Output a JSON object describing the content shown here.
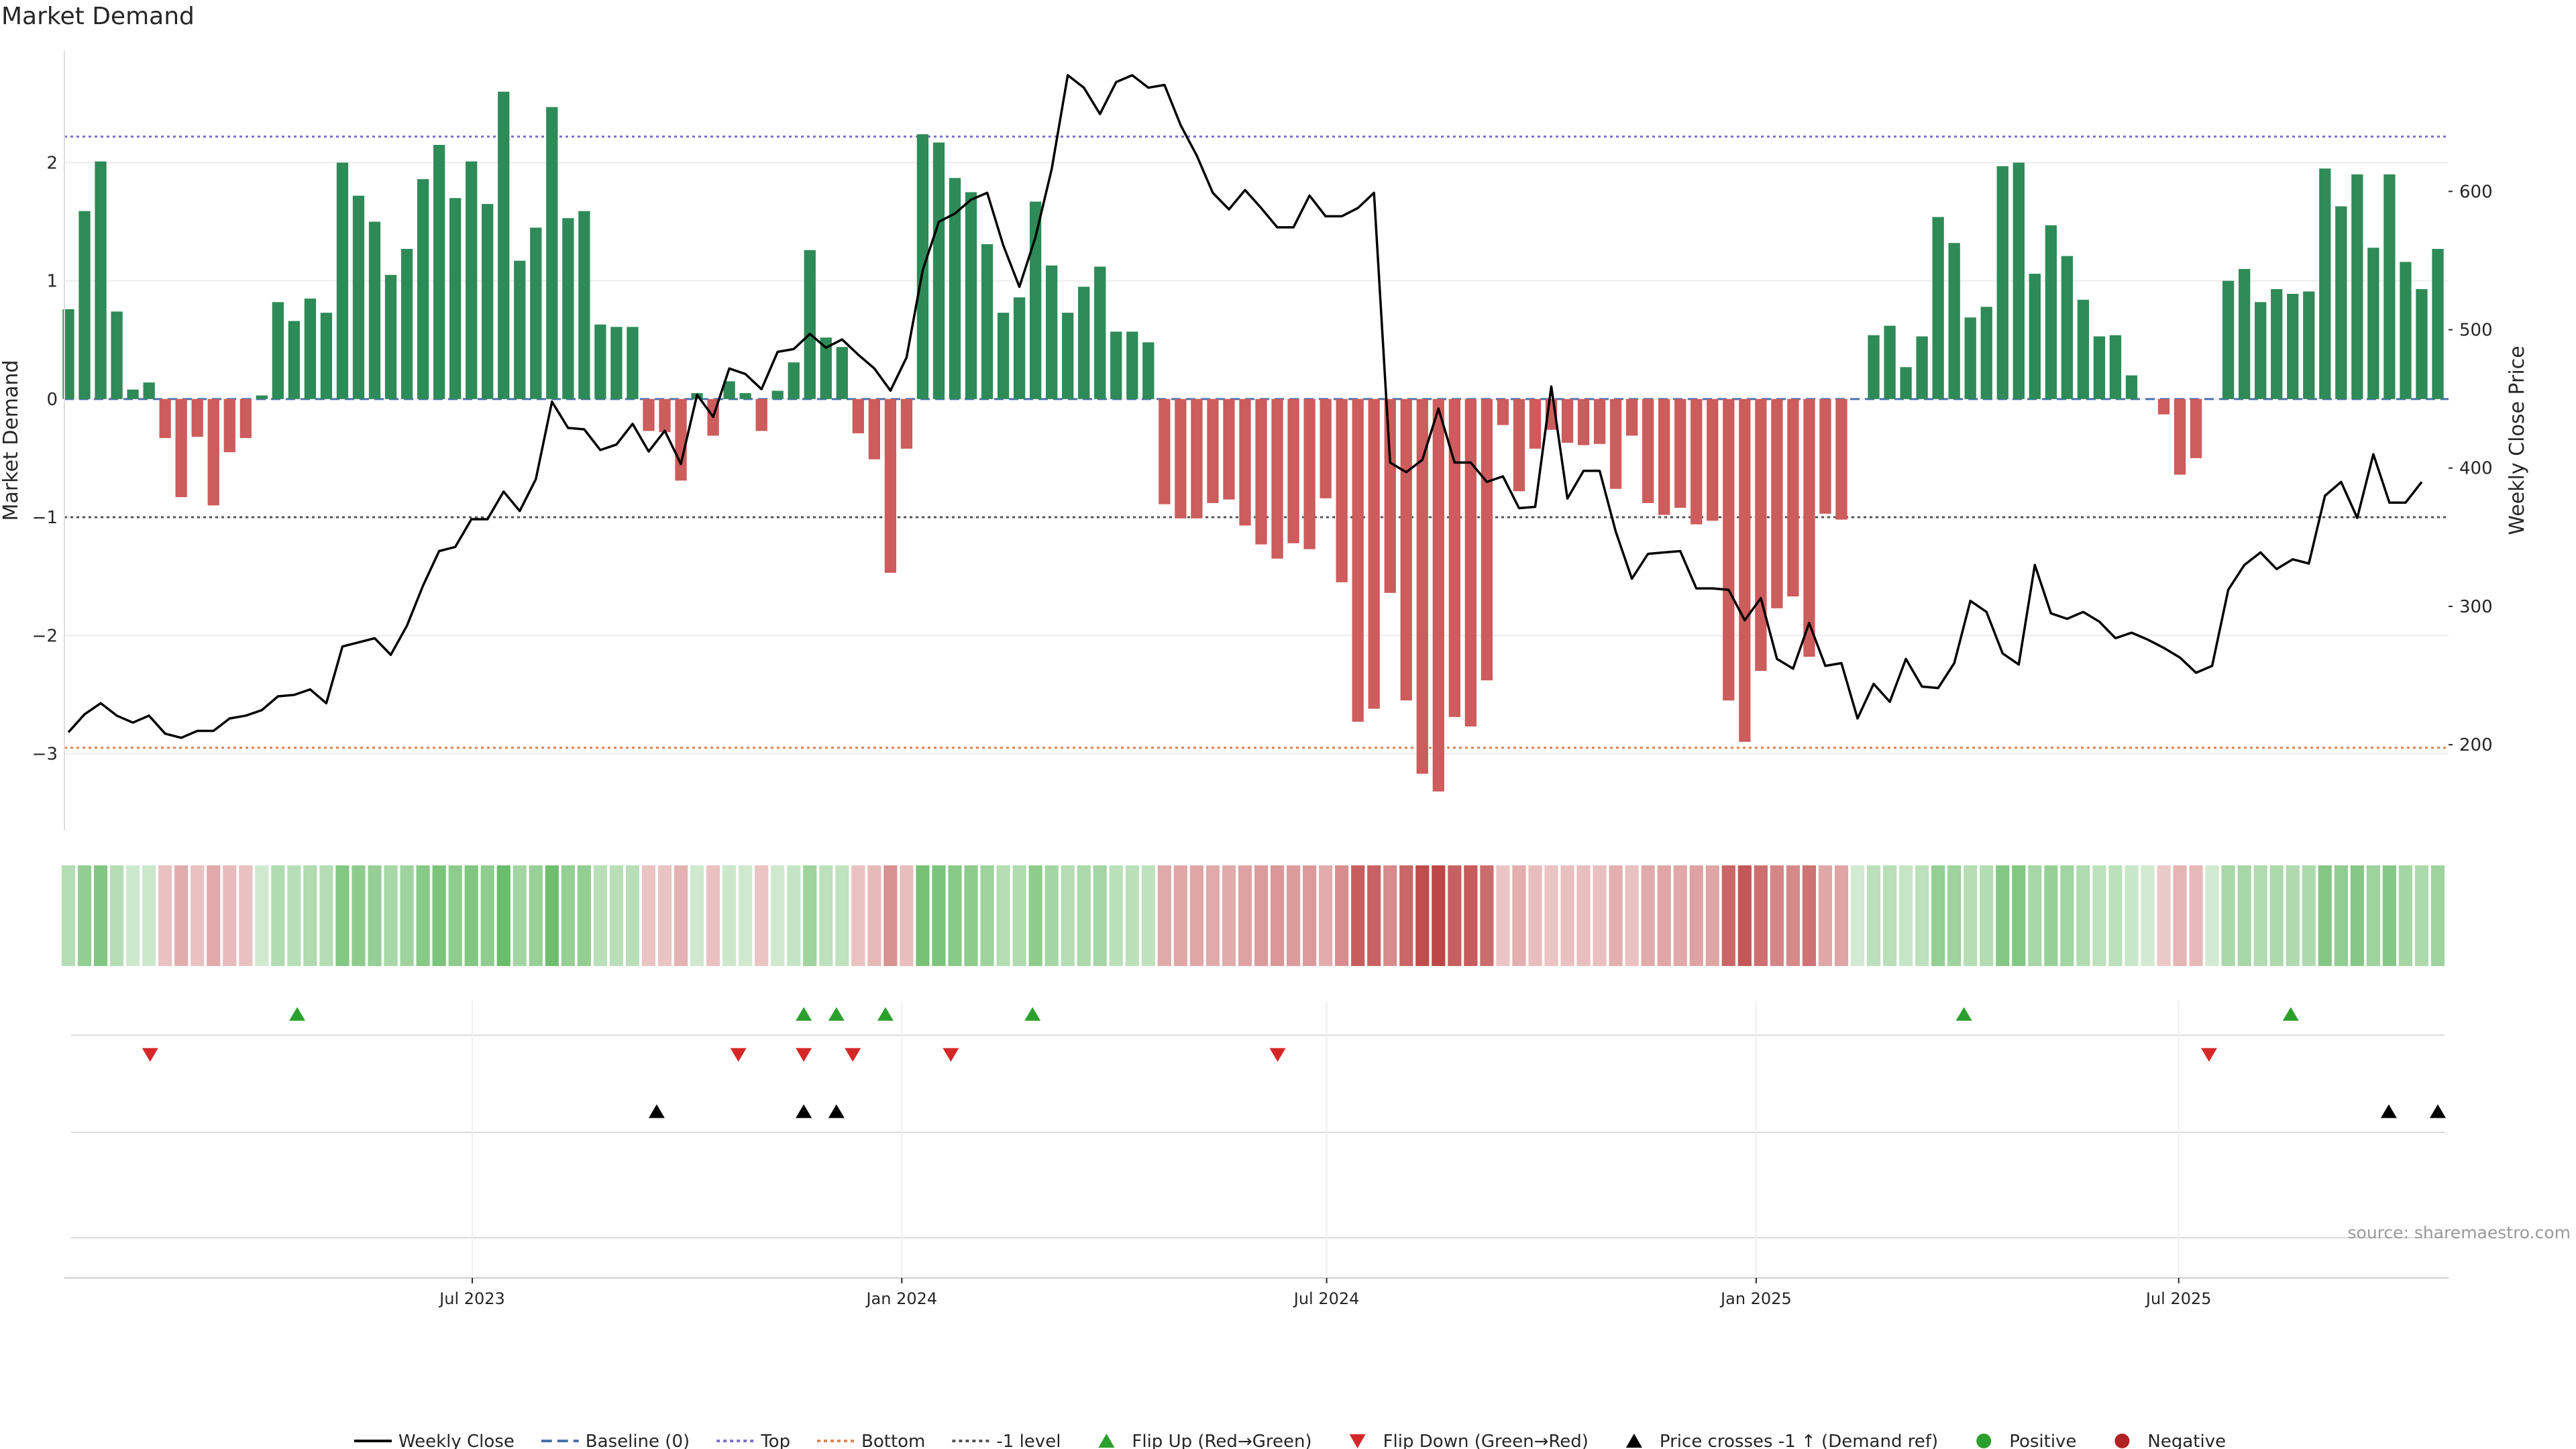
{
  "chart_data": {
    "type": "bar",
    "title": "Market Demand",
    "ylabel_left": "Market Demand",
    "ylabel_right": "Weekly Close Price",
    "source": "source: sharemaestro.com",
    "x_start": "2023-01-09",
    "x_end": "2025-10-20",
    "x_ticks": [
      {
        "date": "2023-07-01",
        "label": "Jul 2023"
      },
      {
        "date": "2024-01-01",
        "label": "Jan 2024"
      },
      {
        "date": "2024-07-01",
        "label": "Jul 2024"
      },
      {
        "date": "2025-01-01",
        "label": "Jan 2025"
      },
      {
        "date": "2025-07-01",
        "label": "Jul 2025"
      }
    ],
    "y_left": {
      "min": -3.65,
      "max": 2.95,
      "ticks": [
        2,
        1,
        0,
        -1,
        -2,
        -3
      ],
      "tick_labels": [
        "2",
        "1",
        "0",
        "−1",
        "−2",
        "−3"
      ]
    },
    "y_right": {
      "min": 138,
      "max": 702,
      "ticks": [
        600,
        500,
        400,
        300,
        200
      ],
      "tick_labels": [
        "600",
        "500",
        "400",
        "300",
        "200"
      ]
    },
    "levels": {
      "top": 2.22,
      "bottom": -2.95,
      "minus_one": -1,
      "baseline": 0
    },
    "demand": [
      0.76,
      1.59,
      2.01,
      0.74,
      0.08,
      0.14,
      -0.33,
      -0.83,
      -0.32,
      -0.9,
      -0.45,
      -0.33,
      0.03,
      0.82,
      0.66,
      0.85,
      0.73,
      2.0,
      1.72,
      1.5,
      1.05,
      1.27,
      1.86,
      2.15,
      1.7,
      2.01,
      1.65,
      2.6,
      1.17,
      1.45,
      2.47,
      1.53,
      1.59,
      0.63,
      0.61,
      0.61,
      -0.27,
      -0.28,
      -0.69,
      0.05,
      -0.31,
      0.15,
      0.05,
      -0.27,
      0.07,
      0.31,
      1.26,
      0.52,
      0.44,
      -0.29,
      -0.51,
      -1.47,
      -0.42,
      2.24,
      2.17,
      1.87,
      1.75,
      1.31,
      0.73,
      0.86,
      1.67,
      1.13,
      0.73,
      0.95,
      1.12,
      0.57,
      0.57,
      0.48,
      -0.89,
      -1.01,
      -1.01,
      -0.88,
      -0.85,
      -1.07,
      -1.23,
      -1.35,
      -1.22,
      -1.27,
      -0.84,
      -1.55,
      -2.73,
      -2.62,
      -1.64,
      -2.55,
      -3.17,
      -3.32,
      -2.69,
      -2.77,
      -2.38,
      -0.22,
      -0.78,
      -0.42,
      -0.26,
      -0.37,
      -0.39,
      -0.38,
      -0.76,
      -0.31,
      -0.88,
      -0.98,
      -0.92,
      -1.06,
      -1.03,
      -2.55,
      -2.9,
      -2.3,
      -1.77,
      -1.67,
      -2.18,
      -0.97,
      -1.02,
      0.0,
      0.54,
      0.62,
      0.27,
      0.53,
      1.54,
      1.32,
      0.69,
      0.78,
      1.97,
      2.0,
      1.06,
      1.47,
      1.21,
      0.84,
      0.53,
      0.54,
      0.2,
      0.0,
      -0.13,
      -0.64,
      -0.5,
      0.0,
      1.0,
      1.1,
      0.82,
      0.93,
      0.89,
      0.91,
      1.95,
      1.63,
      1.9,
      1.28,
      1.9,
      1.16,
      0.93,
      1.27
    ],
    "price": [
      209,
      222,
      230,
      221,
      216,
      221,
      208,
      205,
      210,
      210,
      219,
      221,
      225,
      235,
      236,
      240,
      230,
      271,
      274,
      277,
      265,
      286,
      315,
      340,
      343,
      363,
      363,
      383,
      369,
      392,
      448,
      429,
      428,
      413,
      417,
      432,
      412,
      427,
      403,
      453,
      437,
      472,
      468,
      457,
      484,
      486,
      497,
      487,
      493,
      482,
      472,
      456,
      480,
      543,
      578,
      584,
      594,
      599,
      561,
      531,
      567,
      616,
      684,
      675,
      656,
      679,
      684,
      675,
      677,
      648,
      626,
      599,
      587,
      601,
      588,
      574,
      574,
      597,
      582,
      582,
      588,
      599,
      404,
      397,
      406,
      443,
      404,
      404,
      390,
      394,
      371,
      372,
      459,
      378,
      398,
      398,
      354,
      320,
      338,
      339,
      340,
      313,
      313,
      312,
      290,
      306,
      262,
      255,
      288,
      257,
      259,
      219,
      244,
      231,
      262,
      242,
      241,
      259,
      304,
      296,
      266,
      258,
      330,
      295,
      291,
      296,
      289,
      277,
      281,
      276,
      270,
      263,
      252,
      257,
      312,
      330,
      339,
      327,
      334,
      331,
      380,
      390,
      364,
      410,
      375,
      375,
      390
    ],
    "flip_up": [
      "2023-04-17",
      "2023-11-20",
      "2023-12-04",
      "2023-12-25",
      "2024-02-26",
      "2025-03-31",
      "2025-08-18"
    ],
    "flip_down": [
      "2023-02-13",
      "2023-10-23",
      "2023-11-20",
      "2023-12-11",
      "2024-01-22",
      "2024-06-10",
      "2025-07-14"
    ],
    "price_cross": [
      "2023-09-18",
      "2023-11-20",
      "2023-12-04",
      "2025-09-29",
      "2025-10-20"
    ],
    "legend": [
      {
        "label": "Weekly Close",
        "kind": "line",
        "color": "#000000"
      },
      {
        "label": "Baseline (0)",
        "kind": "dash",
        "color": "#4c72b0"
      },
      {
        "label": "Top",
        "kind": "dot",
        "color": "#7b6fc9"
      },
      {
        "label": "Bottom",
        "kind": "dot",
        "color": "#dd8452"
      },
      {
        "label": "-1 level",
        "kind": "dot",
        "color": "#555555"
      },
      {
        "label": "Flip Up (Red→Green)",
        "kind": "tri-up",
        "color": "#2ca02c"
      },
      {
        "label": "Flip Down (Green→Red)",
        "kind": "tri-down",
        "color": "#d62728"
      },
      {
        "label": "Price crosses -1 ↑ (Demand ref)",
        "kind": "tri-up",
        "color": "#000000"
      },
      {
        "label": "Positive",
        "kind": "circle",
        "color": "#2ca02c"
      },
      {
        "label": "Negative",
        "kind": "circle",
        "color": "#b22222"
      }
    ],
    "colors": {
      "positive": "#2e8b57",
      "negative": "#cd5c5c",
      "price_line": "#000000",
      "baseline": "#4c72b0",
      "top": "#7b6fc9",
      "bottom": "#dd8452",
      "minus_one": "#555555",
      "flip_up": "#2ca02c",
      "flip_down": "#d62728",
      "price_cross": "#000000",
      "heat_positive_rgb": [
        44,
        160,
        44
      ],
      "heat_negative_rgb": [
        178,
        34,
        34
      ]
    },
    "grid": true,
    "legend_placement": "bottom-center"
  }
}
